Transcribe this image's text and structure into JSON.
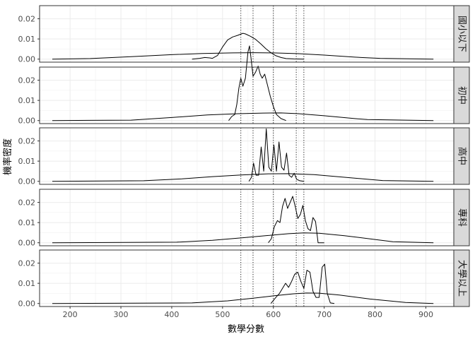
{
  "chart_data": {
    "type": "line",
    "title": "",
    "xlabel": "數學分數",
    "ylabel": "機率密度",
    "xlim": [
      140,
      955
    ],
    "ylim": [
      -0.0015,
      0.0265
    ],
    "x_ticks": [
      200,
      300,
      400,
      500,
      600,
      700,
      800,
      900
    ],
    "x_tick_labels": [
      "200",
      "300",
      "400",
      "500",
      "600",
      "700",
      "800",
      "900"
    ],
    "y_ticks": [
      0.0,
      0.01,
      0.02
    ],
    "y_tick_labels": [
      "0.00",
      "0.01",
      "0.02"
    ],
    "reference_lines_x": [
      536,
      560,
      600,
      645,
      660
    ],
    "grid": true,
    "facets": [
      {
        "label": "國小以下",
        "series": [
          {
            "type": "normal-density-curve",
            "x": [
              165,
              240,
              320,
              400,
              460,
              520,
              560,
              600,
              650,
              700,
              760,
              810,
              915
            ],
            "y": [
              0.0,
              0.0003,
              0.0012,
              0.0022,
              0.0028,
              0.0031,
              0.0032,
              0.0031,
              0.0027,
              0.002,
              0.001,
              0.0004,
              0.0
            ]
          },
          {
            "type": "empirical-density-curve",
            "x": [
              440,
              455,
              465,
              475,
              480,
              490,
              500,
              510,
              520,
              530,
              540,
              545,
              555,
              565,
              575,
              585,
              595,
              605,
              615,
              625,
              640,
              660
            ],
            "y": [
              0.0,
              0.0004,
              0.0008,
              0.0006,
              0.0004,
              0.0018,
              0.006,
              0.0095,
              0.011,
              0.0118,
              0.0128,
              0.0125,
              0.0113,
              0.0098,
              0.0076,
              0.0052,
              0.0032,
              0.0017,
              0.0008,
              0.0003,
              0.0001,
              0.0
            ]
          }
        ]
      },
      {
        "label": "初中",
        "series": [
          {
            "type": "normal-density-curve",
            "x": [
              165,
              320,
              400,
              470,
              530,
              580,
              615,
              650,
              700,
              760,
              785,
              915
            ],
            "y": [
              0.0,
              0.0002,
              0.0015,
              0.0028,
              0.0034,
              0.0037,
              0.0038,
              0.0034,
              0.0024,
              0.001,
              0.0005,
              0.0
            ]
          },
          {
            "type": "empirical-density-curve",
            "x": [
              512,
              518,
              524,
              528,
              532,
              536,
              540,
              545,
              550,
              553,
              556,
              560,
              565,
              570,
              574,
              578,
              583,
              588,
              594,
              600,
              606,
              615,
              625
            ],
            "y": [
              0.0,
              0.002,
              0.003,
              0.008,
              0.016,
              0.021,
              0.017,
              0.021,
              0.034,
              0.037,
              0.031,
              0.022,
              0.024,
              0.027,
              0.023,
              0.021,
              0.023,
              0.018,
              0.012,
              0.007,
              0.003,
              0.001,
              0.0
            ]
          }
        ]
      },
      {
        "label": "高中",
        "series": [
          {
            "type": "normal-density-curve",
            "x": [
              165,
              345,
              420,
              480,
              540,
              590,
              630,
              680,
              730,
              790,
              815,
              915
            ],
            "y": [
              0.0,
              0.0003,
              0.0012,
              0.0023,
              0.0032,
              0.0037,
              0.0038,
              0.0033,
              0.0022,
              0.0009,
              0.0004,
              0.0
            ]
          },
          {
            "type": "empirical-density-curve",
            "x": [
              552,
              557,
              561,
              566,
              571,
              576,
              581,
              586,
              591,
              596,
              601,
              606,
              611,
              616,
              621,
              626,
              631,
              636,
              641,
              646,
              652,
              660
            ],
            "y": [
              0.0,
              0.002,
              0.009,
              0.003,
              0.003,
              0.017,
              0.005,
              0.026,
              0.007,
              0.005,
              0.018,
              0.005,
              0.0195,
              0.007,
              0.0055,
              0.014,
              0.003,
              0.002,
              0.004,
              0.001,
              0.0003,
              0.0
            ]
          }
        ]
      },
      {
        "label": "專科",
        "series": [
          {
            "type": "normal-density-curve",
            "x": [
              165,
              410,
              480,
              540,
              590,
              630,
              660,
              690,
              740,
              800,
              835,
              915
            ],
            "y": [
              0.0,
              0.0003,
              0.0012,
              0.0025,
              0.0036,
              0.0045,
              0.0049,
              0.0047,
              0.0035,
              0.0016,
              0.0005,
              0.0
            ]
          },
          {
            "type": "empirical-density-curve",
            "x": [
              590,
              596,
              602,
              608,
              613,
              618,
              623,
              628,
              633,
              638,
              643,
              648,
              653,
              658,
              663,
              668,
              673,
              678,
              683,
              688,
              693,
              700
            ],
            "y": [
              0.0,
              0.002,
              0.008,
              0.011,
              0.01,
              0.018,
              0.022,
              0.017,
              0.02,
              0.023,
              0.018,
              0.012,
              0.014,
              0.0185,
              0.011,
              0.007,
              0.006,
              0.0125,
              0.0105,
              0.0,
              0.0,
              0.0
            ]
          }
        ]
      },
      {
        "label": "大學以上",
        "series": [
          {
            "type": "normal-density-curve",
            "x": [
              165,
              440,
              510,
              560,
              600,
              640,
              665,
              690,
              730,
              790,
              860,
              915
            ],
            "y": [
              0.0,
              0.0003,
              0.0013,
              0.0026,
              0.0038,
              0.0048,
              0.0052,
              0.0051,
              0.0042,
              0.0022,
              0.0005,
              0.0
            ]
          },
          {
            "type": "empirical-density-curve",
            "x": [
              595,
              605,
              612,
              618,
              624,
              630,
              636,
              642,
              648,
              654,
              660,
              666,
              672,
              678,
              684,
              690,
              696,
              701,
              706,
              712,
              720
            ],
            "y": [
              0.0,
              0.003,
              0.005,
              0.0075,
              0.01,
              0.008,
              0.011,
              0.0145,
              0.0155,
              0.011,
              0.0075,
              0.0165,
              0.0155,
              0.006,
              0.003,
              0.003,
              0.018,
              0.0195,
              0.005,
              0.0003,
              0.0
            ]
          }
        ]
      }
    ]
  }
}
